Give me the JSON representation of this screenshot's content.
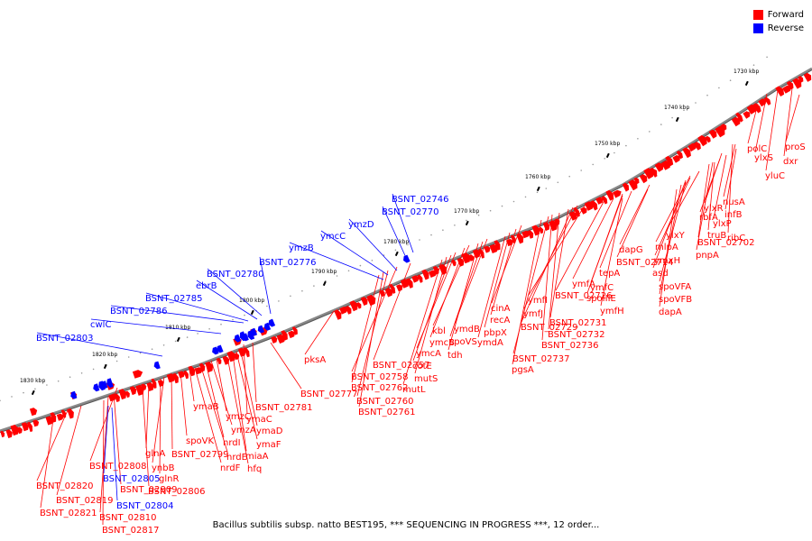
{
  "title": "Bacillus subtilis subsp. natto BEST195, *** SEQUENCING IN PROGRESS ***, 12 order...",
  "legend": {
    "forward_label": "Forward",
    "reverse_label": "Reverse",
    "forward_color": "#ff0000",
    "reverse_color": "#0000ff"
  },
  "colors": {
    "backbone": "#888888",
    "tick": "#000000"
  },
  "ticks": [
    "1730 kbp",
    "1740 kbp",
    "1750 kbp",
    "1760 kbp",
    "1770 kbp",
    "1780 kbp",
    "1790 kbp",
    "1800 kbp",
    "1810 kbp",
    "1820 kbp",
    "1830 kbp"
  ],
  "forward_genes": [
    "proS",
    "dxr",
    "polC",
    "yluC",
    "ylxS",
    "nusA",
    "infB",
    "ylxR",
    "ylxP",
    "rbfA",
    "truB",
    "BSNT_02702",
    "ribC",
    "pnpA",
    "ylxY",
    "mlpA",
    "ymxH",
    "asd",
    "dapG",
    "BSNT_02714",
    "spoVFA",
    "spoVFB",
    "dapA",
    "tepA",
    "spoIIIE",
    "ymfA",
    "ymfC",
    "BSNT_02726",
    "ymfH",
    "ymfI",
    "ymfJ",
    "BSNT_02729",
    "BSNT_02731",
    "BSNT_02732",
    "BSNT_02736",
    "BSNT_02737",
    "pgsA",
    "cinA",
    "recA",
    "pbpX",
    "ymdA",
    "ymdB",
    "spoVS",
    "tdh",
    "kbl",
    "ymcB",
    "ymcA",
    "cotE",
    "mutS",
    "mutL",
    "BSNT_02757",
    "BSNT_02758",
    "BSNT_02760",
    "BSNT_02761",
    "BSNT_02762",
    "pksA",
    "BSNT_02777",
    "BSNT_02781",
    "ymaC",
    "ymaD",
    "ymaF",
    "miaA",
    "hfq",
    "ymzC",
    "ymzA",
    "nrdI",
    "nrdE",
    "nrdF",
    "ymaB",
    "spoVK",
    "BSNT_02799",
    "ynbB",
    "glnR",
    "glnA",
    "BSNT_02806",
    "BSNT_02808",
    "BSNT_02809",
    "BSNT_02810",
    "BSNT_02817",
    "BSNT_02819",
    "BSNT_02820",
    "BSNT_02821"
  ],
  "reverse_genes": [
    "BSNT_02746",
    "BSNT_02770",
    "ymzD",
    "ymcC",
    "ymzB",
    "BSNT_02776",
    "BSNT_02780",
    "ebrB",
    "BSNT_02785",
    "BSNT_02786",
    "cwlC",
    "BSNT_02803",
    "BSNT_02805",
    "BSNT_02804"
  ]
}
